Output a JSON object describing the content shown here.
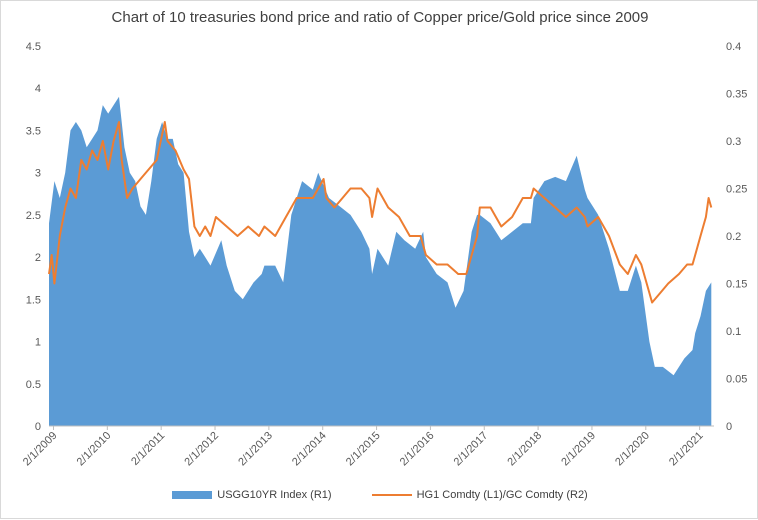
{
  "chart_data": {
    "type": "area",
    "title": "Chart of 10 treasuries bond price and ratio of Copper price/Gold price since 2009",
    "x_tick_labels": [
      "2/1/2009",
      "2/1/2010",
      "2/1/2011",
      "2/1/2012",
      "2/1/2013",
      "2/1/2014",
      "2/1/2015",
      "2/1/2016",
      "2/1/2017",
      "2/1/2018",
      "2/1/2019",
      "2/1/2020",
      "2/1/2021"
    ],
    "left_axis": {
      "min": 0,
      "max": 4.5,
      "ticks": [
        "0",
        "0.5",
        "1",
        "1.5",
        "2",
        "2.5",
        "3",
        "3.5",
        "4",
        "4.5"
      ]
    },
    "right_axis": {
      "min": 0,
      "max": 0.4,
      "ticks": [
        "0",
        "0.05",
        "0.1",
        "0.15",
        "0.2",
        "0.25",
        "0.3",
        "0.35",
        "0.4"
      ]
    },
    "x_start": 2009.0,
    "x_end": 2021.35,
    "grid": "none",
    "legend_position": "bottom",
    "series": [
      {
        "name": "USGG10YR Index  (R1)",
        "type": "area",
        "axis": "left",
        "color": "#5b9bd5",
        "points": [
          [
            2009.0,
            2.4
          ],
          [
            2009.1,
            2.9
          ],
          [
            2009.2,
            2.7
          ],
          [
            2009.3,
            3.0
          ],
          [
            2009.4,
            3.5
          ],
          [
            2009.5,
            3.6
          ],
          [
            2009.6,
            3.5
          ],
          [
            2009.7,
            3.3
          ],
          [
            2009.8,
            3.4
          ],
          [
            2009.9,
            3.5
          ],
          [
            2010.0,
            3.8
          ],
          [
            2010.1,
            3.7
          ],
          [
            2010.2,
            3.8
          ],
          [
            2010.3,
            3.9
          ],
          [
            2010.4,
            3.3
          ],
          [
            2010.5,
            3.0
          ],
          [
            2010.6,
            2.9
          ],
          [
            2010.7,
            2.6
          ],
          [
            2010.8,
            2.5
          ],
          [
            2010.9,
            2.9
          ],
          [
            2011.0,
            3.4
          ],
          [
            2011.1,
            3.6
          ],
          [
            2011.2,
            3.4
          ],
          [
            2011.3,
            3.4
          ],
          [
            2011.4,
            3.1
          ],
          [
            2011.5,
            3.0
          ],
          [
            2011.6,
            2.3
          ],
          [
            2011.7,
            2.0
          ],
          [
            2011.8,
            2.1
          ],
          [
            2011.9,
            2.0
          ],
          [
            2012.0,
            1.9
          ],
          [
            2012.2,
            2.2
          ],
          [
            2012.3,
            1.9
          ],
          [
            2012.45,
            1.6
          ],
          [
            2012.6,
            1.5
          ],
          [
            2012.8,
            1.7
          ],
          [
            2012.95,
            1.8
          ],
          [
            2013.0,
            1.9
          ],
          [
            2013.2,
            1.9
          ],
          [
            2013.35,
            1.7
          ],
          [
            2013.5,
            2.5
          ],
          [
            2013.7,
            2.9
          ],
          [
            2013.9,
            2.8
          ],
          [
            2014.0,
            3.0
          ],
          [
            2014.2,
            2.7
          ],
          [
            2014.4,
            2.6
          ],
          [
            2014.6,
            2.5
          ],
          [
            2014.8,
            2.3
          ],
          [
            2014.95,
            2.1
          ],
          [
            2015.0,
            1.8
          ],
          [
            2015.1,
            2.1
          ],
          [
            2015.3,
            1.9
          ],
          [
            2015.45,
            2.3
          ],
          [
            2015.6,
            2.2
          ],
          [
            2015.8,
            2.1
          ],
          [
            2015.95,
            2.3
          ],
          [
            2016.0,
            2.0
          ],
          [
            2016.2,
            1.8
          ],
          [
            2016.4,
            1.7
          ],
          [
            2016.55,
            1.4
          ],
          [
            2016.7,
            1.6
          ],
          [
            2016.85,
            2.3
          ],
          [
            2016.95,
            2.5
          ],
          [
            2017.0,
            2.5
          ],
          [
            2017.2,
            2.4
          ],
          [
            2017.4,
            2.2
          ],
          [
            2017.6,
            2.3
          ],
          [
            2017.8,
            2.4
          ],
          [
            2017.95,
            2.4
          ],
          [
            2018.0,
            2.7
          ],
          [
            2018.2,
            2.9
          ],
          [
            2018.4,
            2.95
          ],
          [
            2018.6,
            2.9
          ],
          [
            2018.8,
            3.2
          ],
          [
            2018.95,
            2.8
          ],
          [
            2019.0,
            2.7
          ],
          [
            2019.2,
            2.5
          ],
          [
            2019.4,
            2.1
          ],
          [
            2019.6,
            1.6
          ],
          [
            2019.75,
            1.6
          ],
          [
            2019.9,
            1.9
          ],
          [
            2020.0,
            1.7
          ],
          [
            2020.15,
            1.0
          ],
          [
            2020.25,
            0.7
          ],
          [
            2020.4,
            0.7
          ],
          [
            2020.6,
            0.6
          ],
          [
            2020.8,
            0.8
          ],
          [
            2020.95,
            0.9
          ],
          [
            2021.0,
            1.1
          ],
          [
            2021.1,
            1.3
          ],
          [
            2021.2,
            1.6
          ],
          [
            2021.3,
            1.7
          ]
        ]
      },
      {
        "name": "HG1 Comdty  (L1)/GC Comdty (R2)",
        "type": "line",
        "axis": "right",
        "color": "#ed7d31",
        "points": [
          [
            2009.0,
            0.16
          ],
          [
            2009.05,
            0.18
          ],
          [
            2009.1,
            0.15
          ],
          [
            2009.2,
            0.2
          ],
          [
            2009.3,
            0.23
          ],
          [
            2009.4,
            0.25
          ],
          [
            2009.5,
            0.24
          ],
          [
            2009.6,
            0.28
          ],
          [
            2009.7,
            0.27
          ],
          [
            2009.8,
            0.29
          ],
          [
            2009.9,
            0.28
          ],
          [
            2010.0,
            0.3
          ],
          [
            2010.1,
            0.27
          ],
          [
            2010.2,
            0.3
          ],
          [
            2010.3,
            0.32
          ],
          [
            2010.35,
            0.28
          ],
          [
            2010.45,
            0.24
          ],
          [
            2010.55,
            0.25
          ],
          [
            2010.7,
            0.26
          ],
          [
            2010.85,
            0.27
          ],
          [
            2011.0,
            0.28
          ],
          [
            2011.15,
            0.32
          ],
          [
            2011.2,
            0.3
          ],
          [
            2011.35,
            0.29
          ],
          [
            2011.5,
            0.27
          ],
          [
            2011.6,
            0.26
          ],
          [
            2011.7,
            0.21
          ],
          [
            2011.8,
            0.2
          ],
          [
            2011.9,
            0.21
          ],
          [
            2012.0,
            0.2
          ],
          [
            2012.1,
            0.22
          ],
          [
            2012.3,
            0.21
          ],
          [
            2012.5,
            0.2
          ],
          [
            2012.7,
            0.21
          ],
          [
            2012.9,
            0.2
          ],
          [
            2013.0,
            0.21
          ],
          [
            2013.2,
            0.2
          ],
          [
            2013.4,
            0.22
          ],
          [
            2013.6,
            0.24
          ],
          [
            2013.8,
            0.24
          ],
          [
            2013.9,
            0.24
          ],
          [
            2014.0,
            0.25
          ],
          [
            2014.1,
            0.26
          ],
          [
            2014.15,
            0.24
          ],
          [
            2014.3,
            0.23
          ],
          [
            2014.45,
            0.24
          ],
          [
            2014.6,
            0.25
          ],
          [
            2014.8,
            0.25
          ],
          [
            2014.95,
            0.24
          ],
          [
            2015.0,
            0.22
          ],
          [
            2015.1,
            0.25
          ],
          [
            2015.3,
            0.23
          ],
          [
            2015.5,
            0.22
          ],
          [
            2015.7,
            0.2
          ],
          [
            2015.9,
            0.2
          ],
          [
            2016.0,
            0.18
          ],
          [
            2016.2,
            0.17
          ],
          [
            2016.4,
            0.17
          ],
          [
            2016.6,
            0.16
          ],
          [
            2016.75,
            0.16
          ],
          [
            2016.85,
            0.18
          ],
          [
            2016.95,
            0.2
          ],
          [
            2017.0,
            0.23
          ],
          [
            2017.2,
            0.23
          ],
          [
            2017.4,
            0.21
          ],
          [
            2017.6,
            0.22
          ],
          [
            2017.8,
            0.24
          ],
          [
            2017.95,
            0.24
          ],
          [
            2018.0,
            0.25
          ],
          [
            2018.2,
            0.24
          ],
          [
            2018.4,
            0.23
          ],
          [
            2018.6,
            0.22
          ],
          [
            2018.8,
            0.23
          ],
          [
            2018.95,
            0.22
          ],
          [
            2019.0,
            0.21
          ],
          [
            2019.2,
            0.22
          ],
          [
            2019.4,
            0.2
          ],
          [
            2019.6,
            0.17
          ],
          [
            2019.75,
            0.16
          ],
          [
            2019.9,
            0.18
          ],
          [
            2020.0,
            0.17
          ],
          [
            2020.1,
            0.15
          ],
          [
            2020.2,
            0.13
          ],
          [
            2020.35,
            0.14
          ],
          [
            2020.5,
            0.15
          ],
          [
            2020.7,
            0.16
          ],
          [
            2020.85,
            0.17
          ],
          [
            2020.95,
            0.17
          ],
          [
            2021.0,
            0.18
          ],
          [
            2021.1,
            0.2
          ],
          [
            2021.2,
            0.22
          ],
          [
            2021.25,
            0.24
          ],
          [
            2021.3,
            0.23
          ]
        ]
      }
    ]
  }
}
